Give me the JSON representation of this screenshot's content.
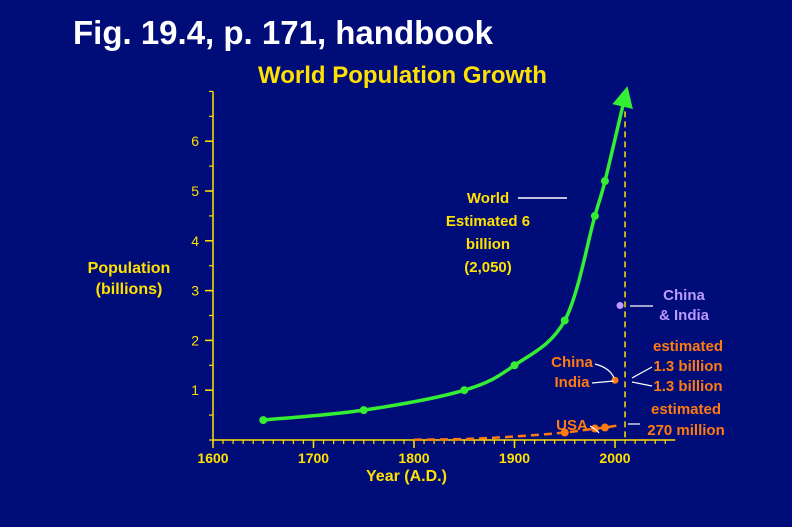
{
  "header": {
    "fig_title": "Fig. 19.4, p. 171, handbook"
  },
  "chart_data": {
    "type": "line",
    "title": "World Population Growth",
    "ylabel_line1": "Population",
    "ylabel_line2": "(billions)",
    "xlabel": "Year (A.D.)",
    "xlim": [
      1600,
      2060
    ],
    "ylim": [
      0,
      7
    ],
    "xticks": [
      1600,
      1700,
      1800,
      1900,
      2000
    ],
    "yticks": [
      1,
      2,
      3,
      4,
      5,
      6
    ],
    "grid": false,
    "series": [
      {
        "name": "World",
        "color": "#33ee33",
        "x": [
          1650,
          1750,
          1850,
          1900,
          1950,
          1980,
          1990,
          2010
        ],
        "y": [
          0.4,
          0.6,
          1.0,
          1.5,
          2.4,
          4.5,
          5.2,
          6.9
        ],
        "markers_x": [
          1650,
          1750,
          1850,
          1900,
          1950,
          1980,
          1990
        ],
        "markers_y": [
          0.4,
          0.6,
          1.0,
          1.5,
          2.4,
          4.5,
          5.2
        ]
      },
      {
        "name": "USA",
        "color": "#ff7a10",
        "x": [
          1800,
          1850,
          1900,
          1950,
          1980,
          1990,
          2005
        ],
        "y": [
          0.005,
          0.02,
          0.07,
          0.15,
          0.23,
          0.25,
          0.3
        ],
        "markers_x": [
          1950,
          1980,
          1990
        ],
        "markers_y": [
          0.15,
          0.23,
          0.25
        ]
      }
    ],
    "projection_line": {
      "x": 2010,
      "color": "#ffe100"
    },
    "annotations": {
      "world_line1": "World",
      "world_line2": "Estimated 6",
      "world_line3": "billion",
      "world_line4": "(2,050)",
      "china_label": "China",
      "india_label": "India",
      "china_india_marker": {
        "x": 2000,
        "y": 1.2,
        "color": "#ff7a10"
      },
      "china_india_2050_line1": "China",
      "china_india_2050_line2": "& India",
      "china_india_2050_point": {
        "x": 2005,
        "y": 2.7,
        "color": "#bb99ff"
      },
      "estimated_1": "estimated",
      "est_china": "1.3 billion",
      "est_india": "1.3 billion",
      "estimated_2": "estimated",
      "est_usa": "270 million",
      "usa_label": "USA"
    },
    "colors": {
      "axis": "#ffe100",
      "tick_label": "#ffe100",
      "world_label": "#ffe100",
      "country_label": "#ff7a10",
      "china_india_label": "#bb99ff",
      "background": "#000c78"
    }
  }
}
